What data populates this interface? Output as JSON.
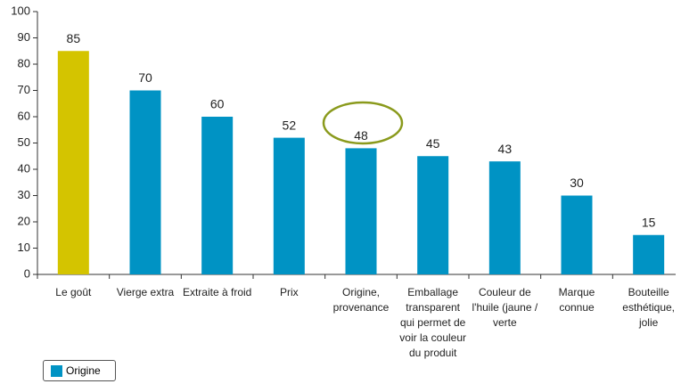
{
  "chart_data": {
    "type": "bar",
    "categories": [
      "Le goût",
      "Vierge extra",
      "Extraite à froid",
      "Prix",
      "Origine, provenance",
      "Emballage transparent qui permet de voir la couleur du produit",
      "Couleur de l'huile (jaune / verte",
      "Marque connue",
      "Bouteille esthétique, jolie"
    ],
    "series": [
      {
        "name": "Origine",
        "color": "#0093c4",
        "values": [
          85,
          70,
          60,
          52,
          48,
          45,
          43,
          30,
          15
        ]
      }
    ],
    "bar_colors": [
      "#d4c400",
      "#0093c4",
      "#0093c4",
      "#0093c4",
      "#0093c4",
      "#0093c4",
      "#0093c4",
      "#0093c4",
      "#0093c4"
    ],
    "ylim": [
      0,
      100
    ],
    "yticks": [
      0,
      10,
      20,
      30,
      40,
      50,
      60,
      70,
      80,
      90,
      100
    ],
    "grid": false,
    "legend": "bottom-left"
  }
}
